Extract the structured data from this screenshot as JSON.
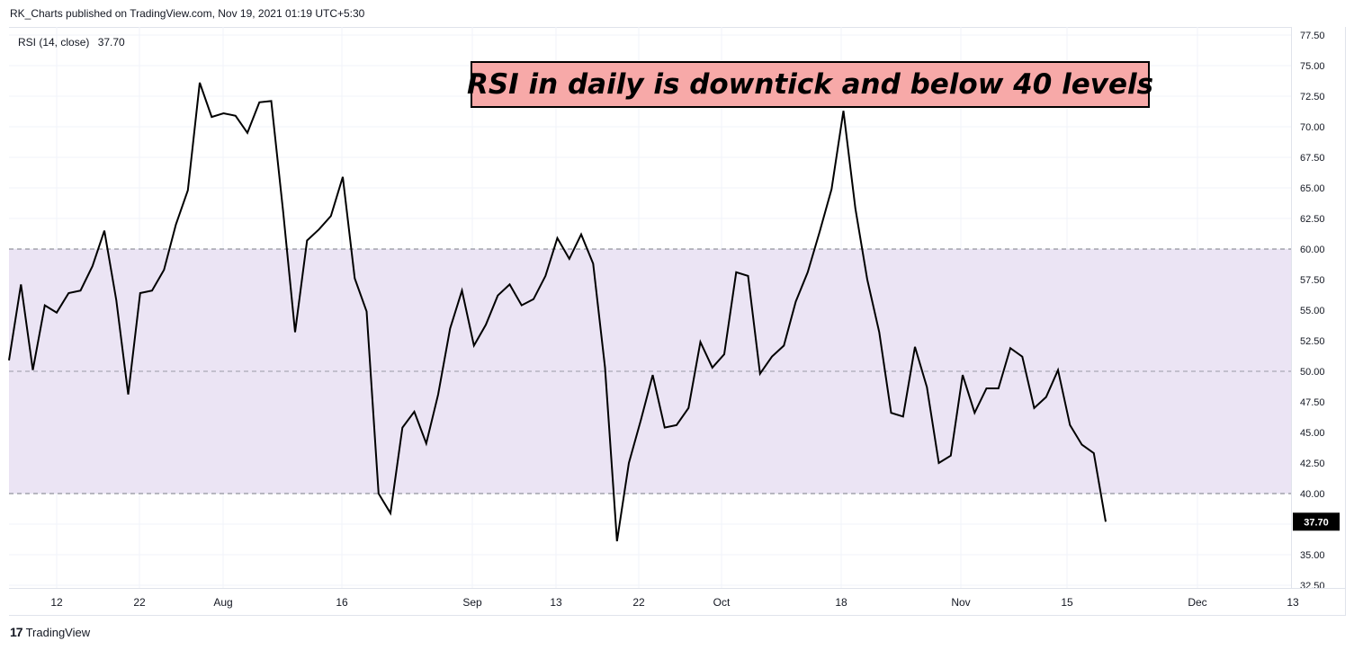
{
  "header": {
    "attribution": "RK_Charts published on TradingView.com, Nov 19, 2021 01:19 UTC+5:30"
  },
  "legend": {
    "name": "RSI (14, close)",
    "value": "37.70"
  },
  "annotation": {
    "text": "RSI in daily is downtick and below 40 levels"
  },
  "footer": {
    "logo": "17",
    "brand": "TradingView"
  },
  "colors": {
    "line": "#000000",
    "band_fill": "#ebe4f4",
    "annotation_bg": "#f7a9a8",
    "price_label_bg": "#000000"
  },
  "chart_data": {
    "type": "line",
    "title": "",
    "series": [
      {
        "name": "RSI (14, close)",
        "values": [
          50.9,
          57.1,
          50.1,
          55.4,
          54.8,
          56.4,
          56.6,
          58.6,
          61.5,
          55.8,
          48.1,
          56.4,
          56.6,
          58.3,
          62.0,
          64.8,
          73.6,
          70.8,
          71.1,
          70.9,
          69.5,
          72.0,
          72.1,
          63.0,
          53.2,
          60.7,
          61.6,
          62.7,
          65.9,
          57.6,
          54.9,
          40.0,
          38.4,
          45.4,
          46.7,
          44.1,
          48.1,
          53.5,
          56.6,
          52.1,
          53.8,
          56.2,
          57.1,
          55.4,
          55.9,
          57.8,
          60.9,
          59.2,
          61.2,
          58.8,
          50.3,
          36.1,
          42.5,
          46.0,
          49.7,
          45.4,
          45.6,
          47.0,
          52.4,
          50.3,
          51.4,
          58.1,
          57.8,
          49.8,
          51.2,
          52.1,
          55.7,
          58.1,
          61.4,
          64.9,
          71.3,
          63.3,
          57.5,
          53.2,
          46.6,
          46.3,
          52.0,
          48.7,
          42.5,
          43.1,
          49.7,
          46.6,
          48.6,
          48.6,
          51.9,
          51.2,
          47.0,
          47.9,
          50.1,
          45.6,
          44.0,
          43.3,
          37.7
        ]
      }
    ],
    "bar_spacing_days": 1,
    "y_axis": {
      "range": [
        32.5,
        77.5
      ],
      "ticks": [
        "77.50",
        "75.00",
        "72.50",
        "70.00",
        "67.50",
        "65.00",
        "62.50",
        "60.00",
        "57.50",
        "55.00",
        "52.50",
        "50.00",
        "47.50",
        "45.00",
        "42.50",
        "40.00",
        "37.50",
        "35.00",
        "32.50"
      ],
      "side": "right"
    },
    "x_axis": {
      "ticks": [
        "12",
        "22",
        "Aug",
        "16",
        "Sep",
        "13",
        "22",
        "Oct",
        "18",
        "Nov",
        "15",
        "Dec",
        "13"
      ]
    },
    "band": {
      "lower": 40,
      "upper": 60,
      "middle": 50
    },
    "last_value_label": "37.70",
    "grid": true,
    "legend": "top-left"
  }
}
